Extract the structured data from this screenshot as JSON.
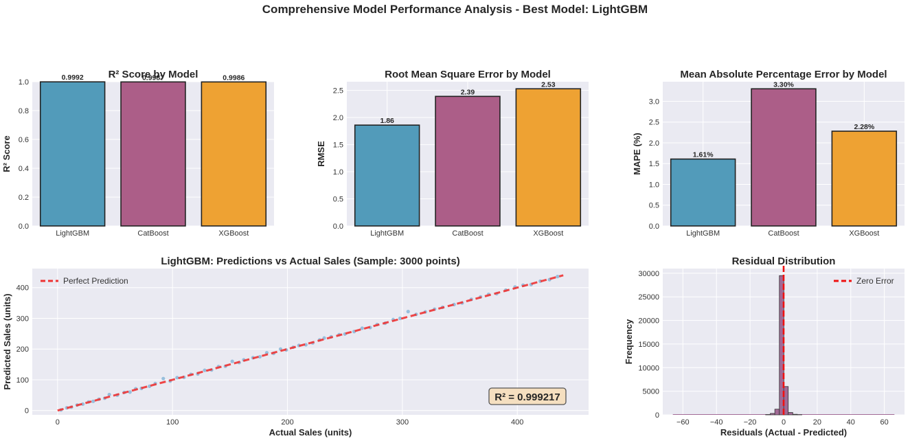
{
  "figure": {
    "suptitle": "Comprehensive Model Performance Analysis - Best Model: LightGBM"
  },
  "colors": {
    "axes_bg": "#eaeaf2",
    "grid": "#ffffff",
    "lightgbm": "#529bba",
    "catboost": "#ac5e88",
    "xgboost": "#eea233",
    "scatter": "#7bafd4",
    "reference_line": "#ee3333",
    "hist": "#a26a96",
    "annotation_bg": "#f5dfc0"
  },
  "chart_data": [
    {
      "id": "r2",
      "type": "bar",
      "title": "R² Score by Model",
      "xlabel": "",
      "ylabel": "R² Score",
      "categories": [
        "LightGBM",
        "CatBoost",
        "XGBoost"
      ],
      "values": [
        0.9992,
        0.9987,
        0.9986
      ],
      "value_labels": [
        "0.9992",
        "0.9987",
        "0.9986"
      ],
      "ylim": [
        0,
        1.0
      ],
      "yticks": [
        0.0,
        0.2,
        0.4,
        0.6,
        0.8,
        1.0
      ],
      "ytick_labels": [
        "0.0",
        "0.2",
        "0.4",
        "0.6",
        "0.8",
        "1.0"
      ],
      "grid": true
    },
    {
      "id": "rmse",
      "type": "bar",
      "title": "Root Mean Square Error by Model",
      "xlabel": "",
      "ylabel": "RMSE",
      "categories": [
        "LightGBM",
        "CatBoost",
        "XGBoost"
      ],
      "values": [
        1.86,
        2.39,
        2.53
      ],
      "value_labels": [
        "1.86",
        "2.39",
        "2.53"
      ],
      "ylim": [
        0,
        2.66
      ],
      "yticks": [
        0.0,
        0.5,
        1.0,
        1.5,
        2.0,
        2.5
      ],
      "ytick_labels": [
        "0.0",
        "0.5",
        "1.0",
        "1.5",
        "2.0",
        "2.5"
      ],
      "grid": true
    },
    {
      "id": "mape",
      "type": "bar",
      "title": "Mean Absolute Percentage Error by Model",
      "xlabel": "",
      "ylabel": "MAPE (%)",
      "categories": [
        "LightGBM",
        "CatBoost",
        "XGBoost"
      ],
      "values": [
        1.61,
        3.3,
        2.28
      ],
      "value_labels": [
        "1.61%",
        "3.30%",
        "2.28%"
      ],
      "ylim": [
        0,
        3.47
      ],
      "yticks": [
        0.0,
        0.5,
        1.0,
        1.5,
        2.0,
        2.5,
        3.0
      ],
      "ytick_labels": [
        "0.0",
        "0.5",
        "1.0",
        "1.5",
        "2.0",
        "2.5",
        "3.0"
      ],
      "grid": true
    },
    {
      "id": "scatter",
      "type": "scatter",
      "title": "LightGBM: Predictions vs Actual Sales (Sample: 3000 points)",
      "xlabel": "Actual Sales (units)",
      "ylabel": "Predicted Sales (units)",
      "xlim": [
        -22,
        462
      ],
      "ylim": [
        -14,
        462
      ],
      "xticks": [
        0,
        100,
        200,
        300,
        400
      ],
      "yticks": [
        0,
        100,
        200,
        300,
        400
      ],
      "reference_line": {
        "name": "Perfect Prediction",
        "from": [
          0,
          0
        ],
        "to": [
          440,
          440
        ]
      },
      "legend": "top-left",
      "annotation": "R² = 0.999217",
      "points": [
        [
          3,
          2
        ],
        [
          8,
          9
        ],
        [
          12,
          11
        ],
        [
          17,
          18
        ],
        [
          22,
          21
        ],
        [
          27,
          28
        ],
        [
          31,
          30
        ],
        [
          36,
          37
        ],
        [
          41,
          40
        ],
        [
          45,
          52
        ],
        [
          52,
          50
        ],
        [
          58,
          59
        ],
        [
          63,
          60
        ],
        [
          68,
          71
        ],
        [
          73,
          72
        ],
        [
          80,
          79
        ],
        [
          85,
          88
        ],
        [
          92,
          104
        ],
        [
          98,
          96
        ],
        [
          104,
          107
        ],
        [
          110,
          108
        ],
        [
          116,
          118
        ],
        [
          122,
          119
        ],
        [
          128,
          131
        ],
        [
          134,
          132
        ],
        [
          140,
          143
        ],
        [
          146,
          144
        ],
        [
          152,
          160
        ],
        [
          158,
          156
        ],
        [
          162,
          165
        ],
        [
          170,
          172
        ],
        [
          176,
          175
        ],
        [
          182,
          188
        ],
        [
          188,
          186
        ],
        [
          194,
          200
        ],
        [
          199,
          197
        ],
        [
          205,
          206
        ],
        [
          210,
          212
        ],
        [
          216,
          214
        ],
        [
          222,
          220
        ],
        [
          228,
          230
        ],
        [
          232,
          236
        ],
        [
          238,
          240
        ],
        [
          245,
          247
        ],
        [
          250,
          249
        ],
        [
          258,
          257
        ],
        [
          265,
          268
        ],
        [
          272,
          270
        ],
        [
          278,
          280
        ],
        [
          285,
          284
        ],
        [
          292,
          296
        ],
        [
          298,
          300
        ],
        [
          305,
          322
        ],
        [
          312,
          313
        ],
        [
          320,
          321
        ],
        [
          328,
          330
        ],
        [
          335,
          336
        ],
        [
          345,
          345
        ],
        [
          352,
          350
        ],
        [
          360,
          362
        ],
        [
          368,
          370
        ],
        [
          375,
          378
        ],
        [
          382,
          380
        ],
        [
          390,
          392
        ],
        [
          398,
          402
        ],
        [
          405,
          408
        ],
        [
          412,
          410
        ],
        [
          420,
          421
        ],
        [
          428,
          426
        ],
        [
          435,
          436
        ]
      ],
      "grid": true
    },
    {
      "id": "residuals",
      "type": "bar",
      "title": "Residual Distribution",
      "xlabel": "Residuals (Actual - Predicted)",
      "ylabel": "Frequency",
      "bin_centers": [
        -9.4,
        -6.6,
        -3.9,
        -1.2,
        1.4,
        4.1,
        6.8,
        9.5
      ],
      "bin_width": 2.7,
      "values": [
        60,
        300,
        1200,
        29500,
        6000,
        500,
        120,
        40
      ],
      "xlim": [
        -72,
        72
      ],
      "ylim": [
        0,
        31000
      ],
      "xticks": [
        -60,
        -40,
        -20,
        0,
        20,
        40,
        60
      ],
      "xtick_labels": [
        "−60",
        "−40",
        "−20",
        "0",
        "20",
        "40",
        "60"
      ],
      "yticks": [
        0,
        5000,
        10000,
        15000,
        20000,
        25000,
        30000
      ],
      "reference_line": {
        "name": "Zero Error",
        "x": 0
      },
      "legend": "top-right",
      "grid": true
    }
  ]
}
